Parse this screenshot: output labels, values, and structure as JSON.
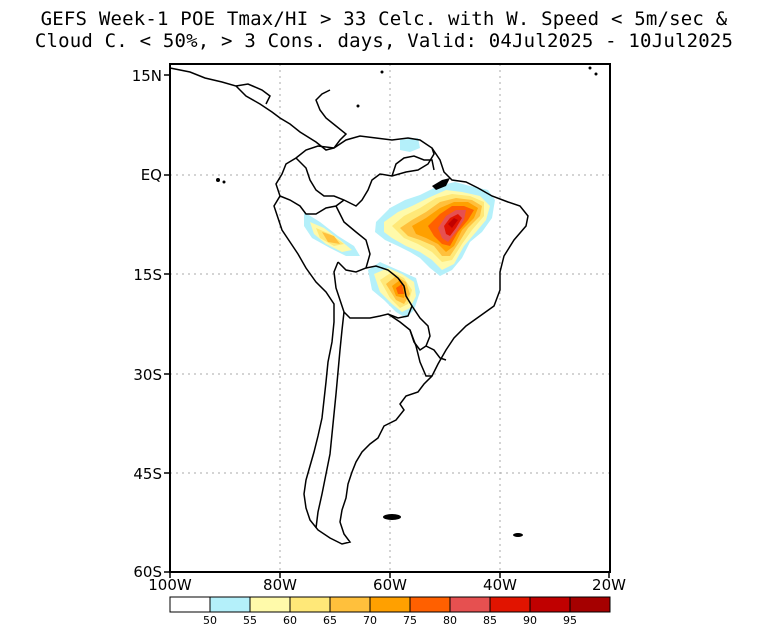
{
  "title": {
    "line1": "GEFS Week-1 POE Tmax/HI > 33 Celc. with W. Speed < 5m/sec &",
    "line2": "Cloud C. < 50%, > 3 Cons. days, Valid: 04Jul2025 - 10Jul2025"
  },
  "map": {
    "lat_labels": [
      "15N",
      "EQ",
      "15S",
      "30S",
      "45S",
      "60S"
    ],
    "lon_labels": [
      "100W",
      "80W",
      "60W",
      "40W",
      "20W"
    ],
    "grid": true
  },
  "colorbar": {
    "labels": [
      "50",
      "55",
      "60",
      "65",
      "70",
      "75",
      "80",
      "85",
      "90",
      "95"
    ],
    "colors": [
      "#ffffff",
      "#b4f0fa",
      "#fffaaa",
      "#ffe878",
      "#ffc03c",
      "#ffa000",
      "#ff6000",
      "#e65050",
      "#e11400",
      "#c00000",
      "#a50000"
    ]
  }
}
